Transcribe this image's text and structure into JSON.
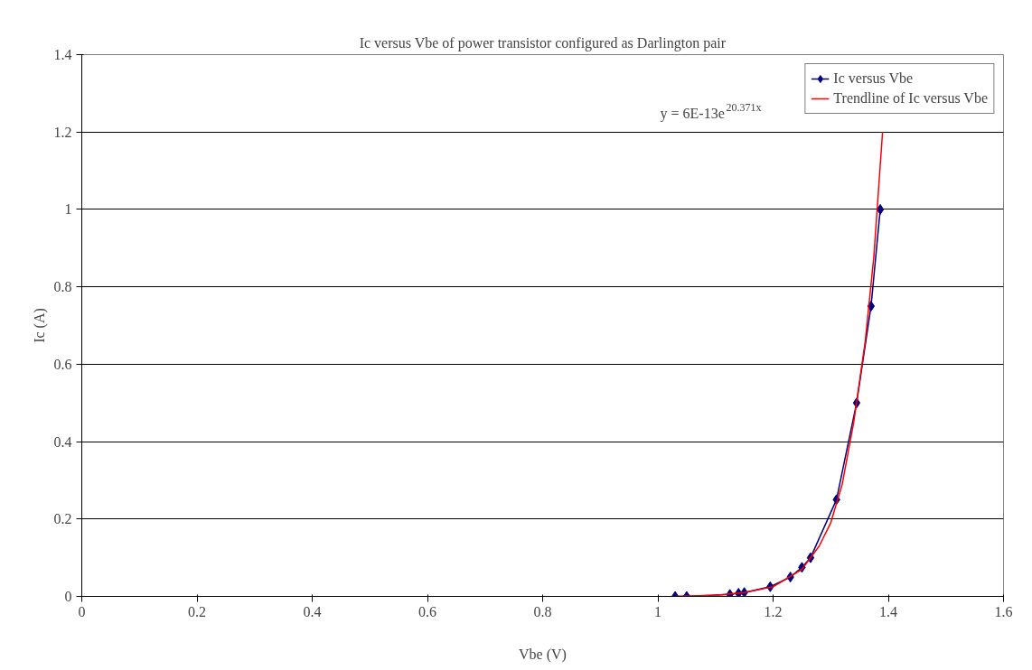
{
  "chart_data": {
    "type": "line",
    "title": "Ic versus Vbe of power transistor configured as Darlington pair",
    "xlabel": "Vbe (V)",
    "ylabel": "Ic (A)",
    "annotations": [
      "y = 6E-13e$^{20.371x}$"
    ],
    "series": [
      {
        "name": "Ic versus Vbe",
        "color": "#000080",
        "marker": "diamond",
        "x": [
          1.03,
          1.05,
          1.125,
          1.14,
          1.15,
          1.195,
          1.23,
          1.25,
          1.265,
          1.31,
          1.345,
          1.37,
          1.386
        ],
        "values": [
          0,
          0,
          0.005,
          0.008,
          0.01,
          0.025,
          0.05,
          0.075,
          0.1,
          0.25,
          0.5,
          0.75,
          1.0
        ]
      },
      {
        "name": "Trendline of Ic versus Vbe",
        "color": "#ff0000",
        "marker": "none",
        "x": [
          1.03,
          1.1,
          1.15,
          1.2,
          1.25,
          1.28,
          1.3,
          1.32,
          1.34,
          1.36,
          1.375,
          1.39
        ],
        "values": [
          0.0,
          0.003,
          0.01,
          0.025,
          0.07,
          0.13,
          0.19,
          0.29,
          0.45,
          0.66,
          0.88,
          1.2
        ]
      }
    ],
    "xlim": [
      0,
      1.6
    ],
    "xticks": [
      0,
      0.2,
      0.4,
      0.6,
      0.8,
      1,
      1.2,
      1.4,
      1.6
    ],
    "ylim": [
      0,
      1.4
    ],
    "yticks": [
      0,
      0.2,
      0.4,
      0.6,
      0.8,
      1,
      1.2,
      1.4
    ],
    "grid": "y",
    "legend": "top right",
    "line_style": "solid"
  }
}
